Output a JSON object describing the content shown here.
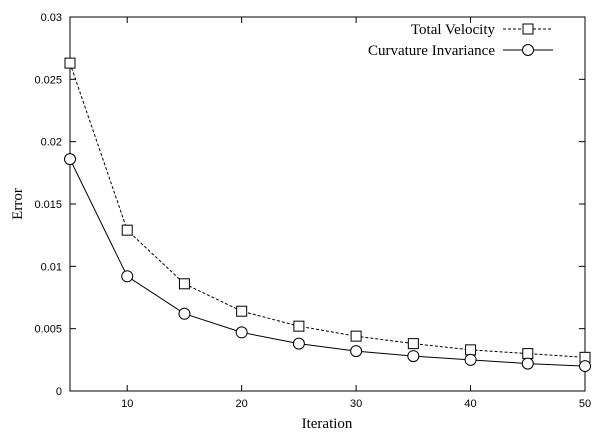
{
  "chart_data": {
    "type": "line",
    "xlabel": "Iteration",
    "ylabel": "Error",
    "xlim": [
      5,
      50
    ],
    "ylim": [
      0,
      0.03
    ],
    "xticks": [
      "10",
      "20",
      "30",
      "40",
      "50"
    ],
    "yticks": [
      "0",
      "0.005",
      "0.01",
      "0.015",
      "0.02",
      "0.025",
      "0.03"
    ],
    "grid": false,
    "legend_position": "top-right",
    "x": [
      5,
      10,
      15,
      20,
      25,
      30,
      35,
      40,
      45,
      50
    ],
    "series": [
      {
        "name": "Total Velocity",
        "line_style": "dashed",
        "marker": "square",
        "values": [
          0.0263,
          0.0129,
          0.0086,
          0.0064,
          0.0052,
          0.0044,
          0.0038,
          0.0033,
          0.003,
          0.0027
        ]
      },
      {
        "name": "Curvature Invariance",
        "line_style": "solid",
        "marker": "circle",
        "values": [
          0.0186,
          0.0092,
          0.0062,
          0.0047,
          0.0038,
          0.0032,
          0.0028,
          0.0025,
          0.0022,
          0.002
        ]
      }
    ]
  }
}
